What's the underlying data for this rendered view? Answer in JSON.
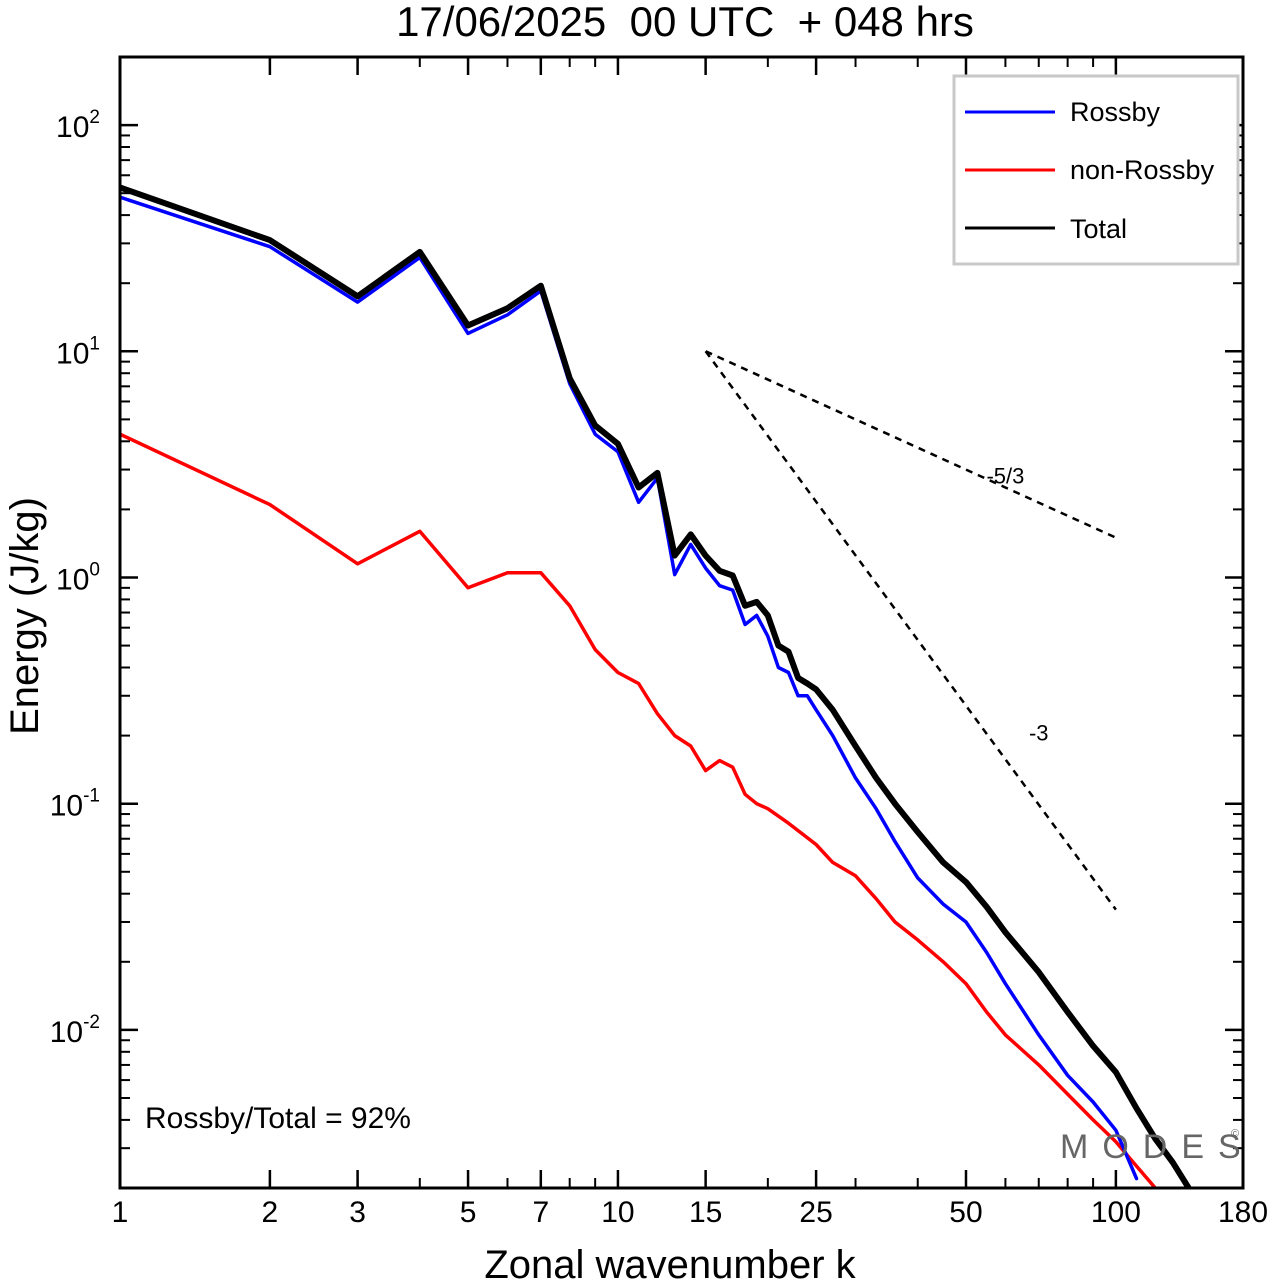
{
  "chart_data": {
    "type": "line",
    "title": "17/06/2025  00 UTC  + 048 hrs",
    "xlabel": "Zonal wavenumber k",
    "ylabel": "Energy (J/kg)",
    "xscale": "log",
    "yscale": "log",
    "xlim": [
      1,
      180
    ],
    "ylim": [
      0.002,
      200
    ],
    "xticks": [
      1,
      2,
      3,
      5,
      7,
      10,
      15,
      25,
      50,
      100,
      180
    ],
    "yticks": [
      {
        "value": 100,
        "base": "10",
        "exp": "2"
      },
      {
        "value": 10,
        "base": "10",
        "exp": "1"
      },
      {
        "value": 1,
        "base": "10",
        "exp": "0"
      },
      {
        "value": 0.1,
        "base": "10",
        "exp": "-1"
      },
      {
        "value": 0.01,
        "base": "10",
        "exp": "-2"
      }
    ],
    "grid": false,
    "legend_position": "top-right",
    "annotation": "Rossby/Total = 92%",
    "watermark": "MODES",
    "reference_slopes": [
      {
        "label": "-5/3",
        "slope": -1.6667,
        "from": [
          15,
          10
        ],
        "to": [
          100,
          1.5
        ]
      },
      {
        "label": "-3",
        "slope": -3,
        "from": [
          15,
          10
        ],
        "to": [
          100,
          0.034
        ]
      }
    ],
    "series": [
      {
        "name": "Rossby",
        "color": "#0000ff",
        "x": [
          1,
          2,
          3,
          4,
          5,
          6,
          7,
          8,
          9,
          10,
          11,
          12,
          13,
          14,
          15,
          16,
          17,
          18,
          19,
          20,
          21,
          22,
          23,
          24,
          25,
          27,
          30,
          33,
          36,
          40,
          45,
          50,
          55,
          60,
          70,
          80,
          90,
          100,
          110
        ],
        "y": [
          48,
          29,
          16.5,
          26,
          12,
          14.5,
          18.5,
          7.2,
          4.3,
          3.6,
          2.15,
          2.75,
          1.03,
          1.4,
          1.1,
          0.92,
          0.88,
          0.62,
          0.68,
          0.55,
          0.4,
          0.38,
          0.3,
          0.3,
          0.26,
          0.2,
          0.13,
          0.095,
          0.068,
          0.047,
          0.036,
          0.03,
          0.022,
          0.016,
          0.0095,
          0.0063,
          0.0048,
          0.0036,
          0.0022
        ]
      },
      {
        "name": "non-Rossby",
        "color": "#ff0000",
        "x": [
          1,
          2,
          3,
          4,
          5,
          6,
          7,
          8,
          9,
          10,
          11,
          12,
          13,
          14,
          15,
          16,
          17,
          18,
          19,
          20,
          22,
          25,
          27,
          30,
          33,
          36,
          40,
          45,
          50,
          55,
          60,
          70,
          80,
          90,
          100,
          110,
          120
        ],
        "y": [
          4.3,
          2.1,
          1.15,
          1.6,
          0.9,
          1.05,
          1.05,
          0.75,
          0.48,
          0.38,
          0.34,
          0.25,
          0.2,
          0.18,
          0.14,
          0.155,
          0.145,
          0.11,
          0.1,
          0.095,
          0.082,
          0.066,
          0.055,
          0.048,
          0.038,
          0.03,
          0.025,
          0.02,
          0.016,
          0.012,
          0.0095,
          0.007,
          0.0052,
          0.004,
          0.0032,
          0.0025,
          0.002
        ]
      },
      {
        "name": "Total",
        "color": "#000000",
        "x": [
          1,
          2,
          3,
          4,
          5,
          6,
          7,
          8,
          9,
          10,
          11,
          12,
          13,
          14,
          15,
          16,
          17,
          18,
          19,
          20,
          21,
          22,
          23,
          24,
          25,
          27,
          30,
          33,
          36,
          40,
          45,
          50,
          55,
          60,
          70,
          80,
          90,
          100,
          110,
          120,
          130,
          140
        ],
        "y": [
          53,
          31,
          17.5,
          27.5,
          13,
          15.5,
          19.5,
          7.6,
          4.7,
          3.9,
          2.5,
          2.9,
          1.25,
          1.55,
          1.25,
          1.07,
          1.02,
          0.75,
          0.78,
          0.68,
          0.5,
          0.47,
          0.36,
          0.34,
          0.32,
          0.26,
          0.18,
          0.13,
          0.1,
          0.075,
          0.055,
          0.045,
          0.035,
          0.027,
          0.018,
          0.012,
          0.0085,
          0.0065,
          0.0045,
          0.0033,
          0.0026,
          0.002
        ]
      }
    ]
  }
}
